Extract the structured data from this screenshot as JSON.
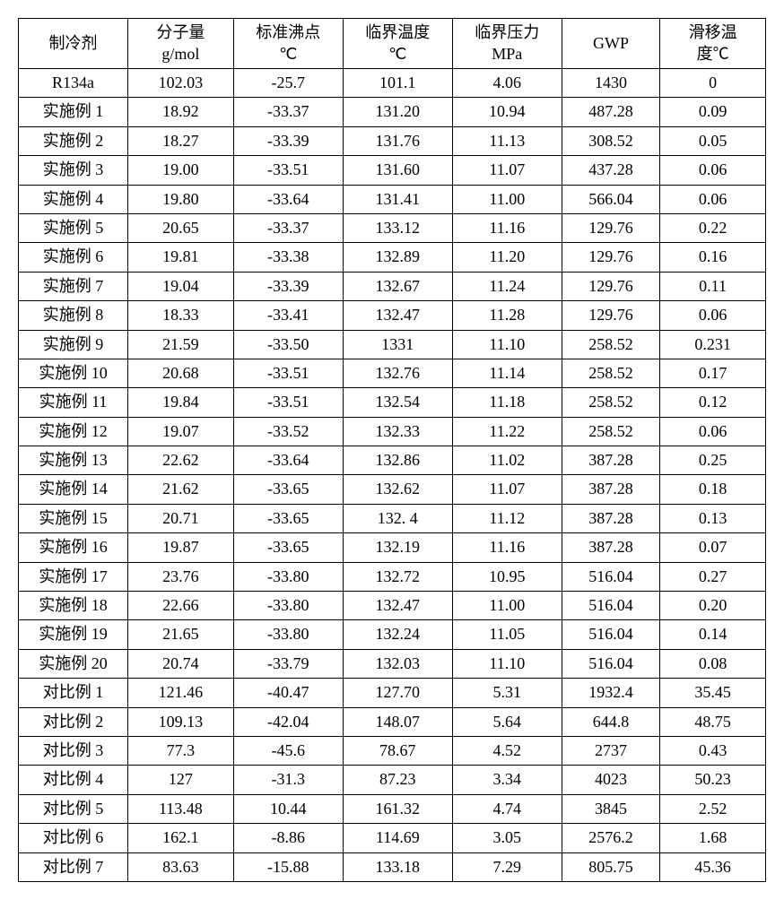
{
  "table": {
    "type": "table",
    "background_color": "#ffffff",
    "border_color": "#000000",
    "font_family": "SimSun",
    "font_size": 18,
    "text_color": "#000000",
    "columns": [
      {
        "label_line1": "制冷剂",
        "label_line2": "",
        "width": "14.5%"
      },
      {
        "label_line1": "分子量",
        "label_line2": "g/mol",
        "width": "14%"
      },
      {
        "label_line1": "标准沸点",
        "label_line2": "℃",
        "width": "14.5%"
      },
      {
        "label_line1": "临界温度",
        "label_line2": "℃",
        "width": "14.5%"
      },
      {
        "label_line1": "临界压力",
        "label_line2": "MPa",
        "width": "14.5%"
      },
      {
        "label_line1": "GWP",
        "label_line2": "",
        "width": "13%"
      },
      {
        "label_line1": "滑移温",
        "label_line2": "度℃",
        "width": "14%"
      }
    ],
    "rows": [
      [
        "R134a",
        "102.03",
        "-25.7",
        "101.1",
        "4.06",
        "1430",
        "0"
      ],
      [
        "实施例 1",
        "18.92",
        "-33.37",
        "131.20",
        "10.94",
        "487.28",
        "0.09"
      ],
      [
        "实施例 2",
        "18.27",
        "-33.39",
        "131.76",
        "11.13",
        "308.52",
        "0.05"
      ],
      [
        "实施例 3",
        "19.00",
        "-33.51",
        "131.60",
        "11.07",
        "437.28",
        "0.06"
      ],
      [
        "实施例 4",
        "19.80",
        "-33.64",
        "131.41",
        "11.00",
        "566.04",
        "0.06"
      ],
      [
        "实施例 5",
        "20.65",
        "-33.37",
        "133.12",
        "11.16",
        "129.76",
        "0.22"
      ],
      [
        "实施例 6",
        "19.81",
        "-33.38",
        "132.89",
        "11.20",
        "129.76",
        "0.16"
      ],
      [
        "实施例 7",
        "19.04",
        "-33.39",
        "132.67",
        "11.24",
        "129.76",
        "0.11"
      ],
      [
        "实施例 8",
        "18.33",
        "-33.41",
        "132.47",
        "11.28",
        "129.76",
        "0.06"
      ],
      [
        "实施例 9",
        "21.59",
        "-33.50",
        "1331",
        "11.10",
        "258.52",
        "0.231"
      ],
      [
        "实施例 10",
        "20.68",
        "-33.51",
        "132.76",
        "11.14",
        "258.52",
        "0.17"
      ],
      [
        "实施例 11",
        "19.84",
        "-33.51",
        "132.54",
        "11.18",
        "258.52",
        "0.12"
      ],
      [
        "实施例 12",
        "19.07",
        "-33.52",
        "132.33",
        "11.22",
        "258.52",
        "0.06"
      ],
      [
        "实施例 13",
        "22.62",
        "-33.64",
        "132.86",
        "11.02",
        "387.28",
        "0.25"
      ],
      [
        "实施例 14",
        "21.62",
        "-33.65",
        "132.62",
        "11.07",
        "387.28",
        "0.18"
      ],
      [
        "实施例 15",
        "20.71",
        "-33.65",
        "132. 4",
        "11.12",
        "387.28",
        "0.13"
      ],
      [
        "实施例 16",
        "19.87",
        "-33.65",
        "132.19",
        "11.16",
        "387.28",
        "0.07"
      ],
      [
        "实施例 17",
        "23.76",
        "-33.80",
        "132.72",
        "10.95",
        "516.04",
        "0.27"
      ],
      [
        "实施例 18",
        "22.66",
        "-33.80",
        "132.47",
        "11.00",
        "516.04",
        "0.20"
      ],
      [
        "实施例 19",
        "21.65",
        "-33.80",
        "132.24",
        "11.05",
        "516.04",
        "0.14"
      ],
      [
        "实施例 20",
        "20.74",
        "-33.79",
        "132.03",
        "11.10",
        "516.04",
        "0.08"
      ],
      [
        "对比例 1",
        "121.46",
        "-40.47",
        "127.70",
        "5.31",
        "1932.4",
        "35.45"
      ],
      [
        "对比例 2",
        "109.13",
        "-42.04",
        "148.07",
        "5.64",
        "644.8",
        "48.75"
      ],
      [
        "对比例 3",
        "77.3",
        "-45.6",
        "78.67",
        "4.52",
        "2737",
        "0.43"
      ],
      [
        "对比例 4",
        "127",
        "-31.3",
        "87.23",
        "3.34",
        "4023",
        "50.23"
      ],
      [
        "对比例 5",
        "113.48",
        "10.44",
        "161.32",
        "4.74",
        "3845",
        "2.52"
      ],
      [
        "对比例 6",
        "162.1",
        "-8.86",
        "114.69",
        "3.05",
        "2576.2",
        "1.68"
      ],
      [
        "对比例 7",
        "83.63",
        "-15.88",
        "133.18",
        "7.29",
        "805.75",
        "45.36"
      ]
    ]
  }
}
